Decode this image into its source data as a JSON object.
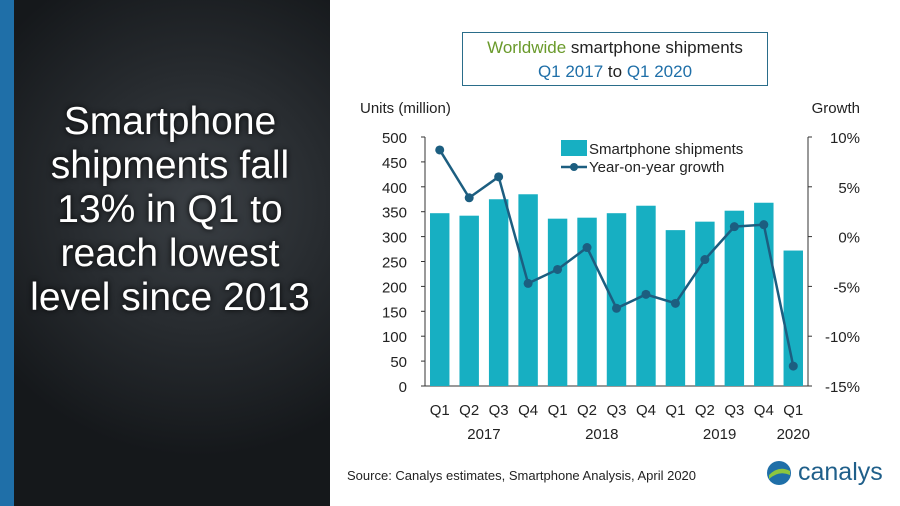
{
  "headline": "Smartphone shipments fall 13% in Q1 to reach lowest level since 2013",
  "title": {
    "part1": "Worldwide",
    "part2": " smartphone shipments",
    "line2a": "Q1 2017",
    "line2b": " to ",
    "line2c": "Q1 2020"
  },
  "source": "Source: Canalys estimates, Smartphone Analysis, April 2020",
  "logo": "canalys",
  "colors": {
    "bar": "#17afc2",
    "line": "#1c5e80",
    "accent_green": "#6a9a2b",
    "accent_blue": "#1f6fa8"
  },
  "chart_data": {
    "type": "bar+line",
    "categories": [
      "Q1",
      "Q2",
      "Q3",
      "Q4",
      "Q1",
      "Q2",
      "Q3",
      "Q4",
      "Q1",
      "Q2",
      "Q3",
      "Q4",
      "Q1"
    ],
    "years": [
      {
        "label": "2017",
        "span": [
          0,
          3
        ]
      },
      {
        "label": "2018",
        "span": [
          4,
          7
        ]
      },
      {
        "label": "2019",
        "span": [
          8,
          11
        ]
      },
      {
        "label": "2020",
        "span": [
          12,
          12
        ]
      }
    ],
    "ylabel": "Units (million)",
    "y2label": "Growth",
    "ylim": [
      0,
      500
    ],
    "yticks": [
      "0",
      "50",
      "100",
      "150",
      "200",
      "250",
      "300",
      "350",
      "400",
      "450",
      "500"
    ],
    "y2lim": [
      -15,
      10
    ],
    "y2ticks": [
      "-15%",
      "-10%",
      "-5%",
      "0%",
      "5%",
      "10%"
    ],
    "series": [
      {
        "name": "Smartphone shipments",
        "type": "bar",
        "values": [
          347,
          342,
          375,
          385,
          336,
          338,
          347,
          362,
          313,
          330,
          352,
          368,
          272
        ]
      },
      {
        "name": "Year-on-year growth",
        "type": "line",
        "axis": "right",
        "values": [
          8.7,
          3.9,
          6.0,
          -4.7,
          -3.3,
          -1.1,
          -7.2,
          -5.8,
          -6.7,
          -2.3,
          1.0,
          1.2,
          -13.0
        ]
      }
    ],
    "legend": "top-center"
  }
}
